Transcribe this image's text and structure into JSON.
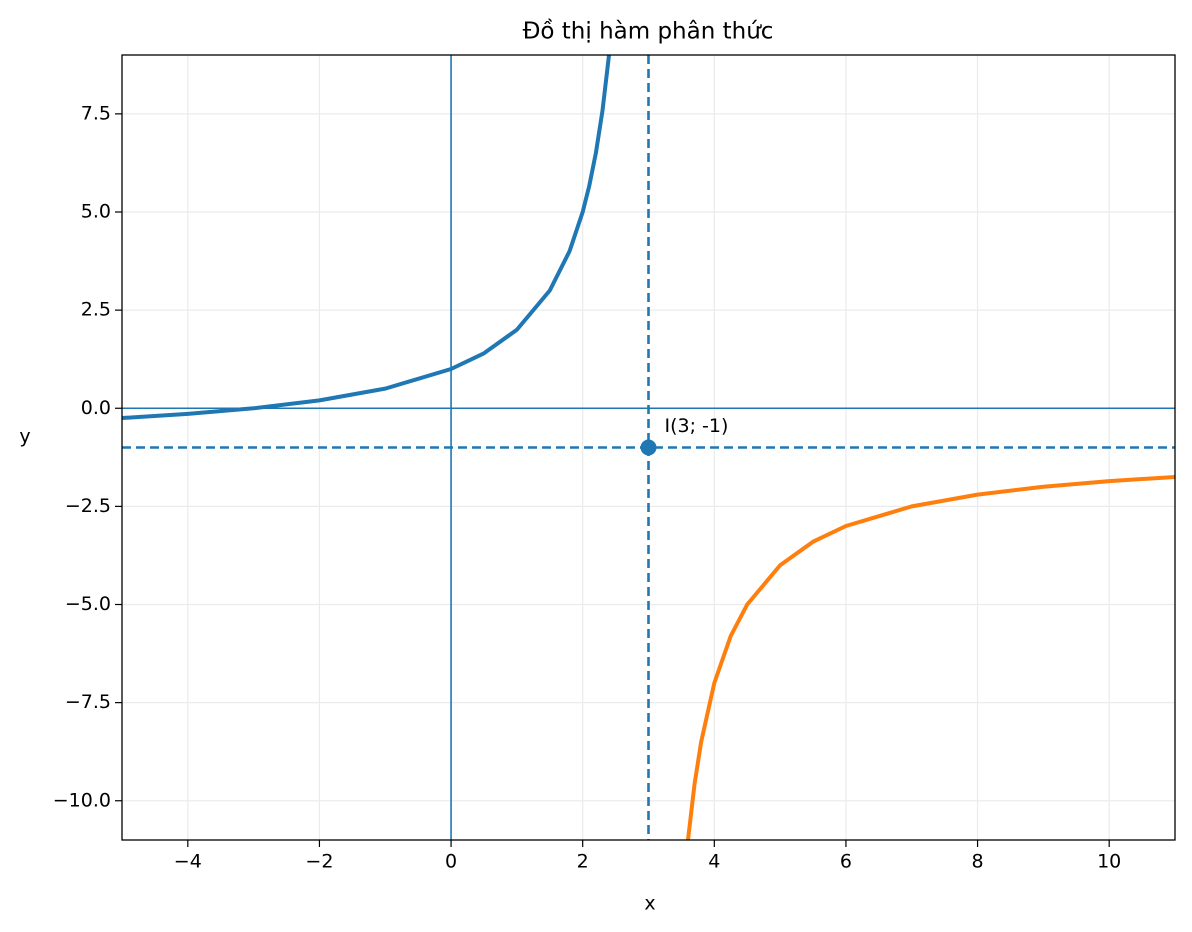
{
  "chart_data": {
    "type": "line",
    "title": "Đồ thị hàm phân thức",
    "x_label": "x",
    "y_label": "y",
    "xlim": [
      -5,
      11
    ],
    "ylim": [
      -11,
      9
    ],
    "xticks": [
      {
        "value": -4,
        "label": "−4"
      },
      {
        "value": -2,
        "label": "−2"
      },
      0,
      2,
      4,
      6,
      8,
      10
    ],
    "yticks": [
      {
        "value": -10,
        "label": "−10.0"
      },
      {
        "value": -7.5,
        "label": "−7.5"
      },
      {
        "value": -5,
        "label": "−5.0"
      },
      {
        "value": -2.5,
        "label": "−2.5"
      },
      {
        "value": 0,
        "label": "0.0"
      },
      2.5,
      {
        "value": 5,
        "label": "5.0"
      },
      7.5
    ],
    "grid": true,
    "series": [
      {
        "color": "#1f77b4",
        "x": [
          -5,
          -4,
          -3,
          -2,
          -1,
          0,
          0.5,
          1,
          1.5,
          1.8,
          2,
          2.1,
          2.2,
          2.3,
          2.4
        ],
        "values": [
          -0.25,
          -0.1429,
          0,
          0.2,
          0.5,
          1,
          1.4,
          2,
          3,
          4,
          5,
          5.667,
          6.5,
          7.571,
          9
        ]
      },
      {
        "color": "#ff7f0e",
        "x": [
          3.6,
          3.7,
          3.8,
          4,
          4.25,
          4.5,
          5,
          5.5,
          6,
          7,
          8,
          9,
          10,
          11
        ],
        "values": [
          -11,
          -9.571,
          -8.5,
          -7,
          -5.8,
          -5,
          -4,
          -3.4,
          -3,
          -2.5,
          -2.2,
          -2,
          -1.857,
          -1.75
        ]
      }
    ],
    "reference_lines": [
      {
        "orientation": "vertical",
        "value": 0,
        "style": "solid",
        "color": "#1f77b4"
      },
      {
        "orientation": "horizontal",
        "value": 0,
        "style": "solid",
        "color": "#1f77b4"
      },
      {
        "orientation": "vertical",
        "value": 3,
        "style": "dashed",
        "color": "#1f77b4"
      },
      {
        "orientation": "horizontal",
        "value": -1,
        "style": "dashed",
        "color": "#1f77b4"
      }
    ],
    "points": [
      {
        "x": 3,
        "y": -1,
        "label": "I(3; -1)",
        "color": "#1f77b4"
      }
    ]
  }
}
